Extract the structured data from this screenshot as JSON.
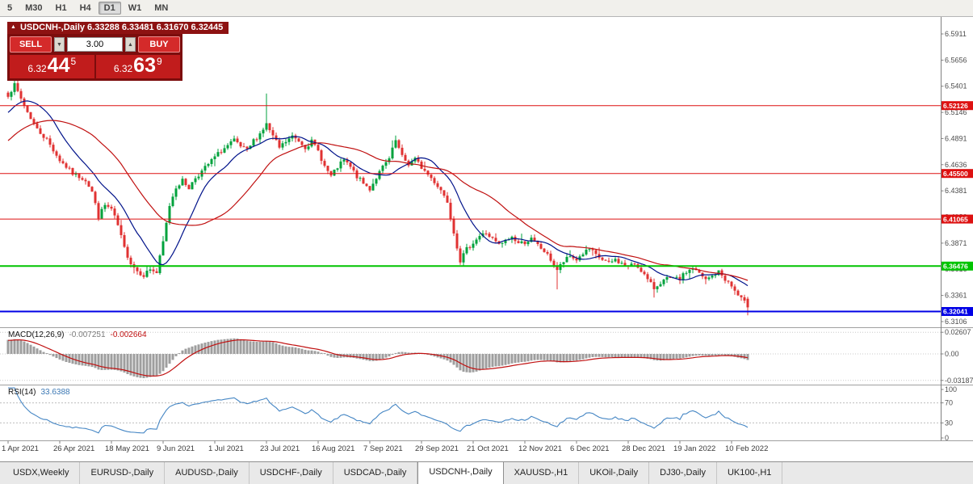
{
  "toolbar": {
    "timeframes": [
      "5",
      "M30",
      "H1",
      "H4",
      "D1",
      "W1",
      "MN"
    ],
    "active": "D1"
  },
  "title": {
    "collapse_icon": "▲",
    "text": "USDCNH-,Daily 6.33288 6.33481 6.31670 6.32445"
  },
  "trade_panel": {
    "sell_label": "SELL",
    "buy_label": "BUY",
    "lot_value": "3.00",
    "lot_down_icon": "▼",
    "lot_up_icon": "▲",
    "bid": {
      "prefix": "6.32",
      "big": "44",
      "sup": "5"
    },
    "ask": {
      "prefix": "6.32",
      "big": "63",
      "sup": "9"
    }
  },
  "chart_data": {
    "type": "candlestick",
    "symbol": "USDCNH-",
    "period": "Daily",
    "ohlc": {
      "open": "6.33288",
      "high": "6.33481",
      "low": "6.31670",
      "close": "6.32445"
    },
    "price_axis": {
      "labels": [
        6.5911,
        6.5656,
        6.5401,
        6.5146,
        6.4891,
        6.4636,
        6.4381,
        6.4126,
        6.3871,
        6.3616,
        6.3361,
        6.3106
      ],
      "decimals": 4
    },
    "hlines": [
      {
        "price": 6.5212,
        "tag": "6.52126",
        "color": "#dd1111",
        "width": 1
      },
      {
        "price": 6.455,
        "tag": "6.45500",
        "color": "#dd1111",
        "width": 1
      },
      {
        "price": 6.4106,
        "tag": "6.41065",
        "color": "#dd1111",
        "width": 1
      },
      {
        "price": 6.3647,
        "tag": "6.36476",
        "color": "#00c400",
        "width": 2
      },
      {
        "price": 6.3204,
        "tag": "6.32041",
        "color": "#0000e6",
        "width": 2
      }
    ],
    "date_labels": [
      "1 Apr 2021",
      "26 Apr 2021",
      "18 May 2021",
      "9 Jun 2021",
      "1 Jul 2021",
      "23 Jul 2021",
      "16 Aug 2021",
      "7 Sep 2021",
      "29 Sep 2021",
      "21 Oct 2021",
      "12 Nov 2021",
      "6 Dec 2021",
      "28 Dec 2021",
      "19 Jan 2022",
      "10 Feb 2022"
    ],
    "label_step": 16,
    "up_color": "#00a23c",
    "down_color": "#e03232",
    "candles": {
      "count": 230,
      "seed": 7,
      "noise": 0.0045,
      "anchors": [
        [
          0,
          6.532
        ],
        [
          2,
          6.541
        ],
        [
          4,
          6.528
        ],
        [
          6,
          6.515
        ],
        [
          9,
          6.498
        ],
        [
          12,
          6.488
        ],
        [
          16,
          6.468
        ],
        [
          20,
          6.455
        ],
        [
          24,
          6.449
        ],
        [
          26,
          6.437
        ],
        [
          28,
          6.413
        ],
        [
          30,
          6.424
        ],
        [
          32,
          6.42
        ],
        [
          34,
          6.404
        ],
        [
          36,
          6.382
        ],
        [
          38,
          6.368
        ],
        [
          40,
          6.36
        ],
        [
          42,
          6.356
        ],
        [
          44,
          6.362
        ],
        [
          46,
          6.358
        ],
        [
          48,
          6.388
        ],
        [
          50,
          6.424
        ],
        [
          52,
          6.442
        ],
        [
          54,
          6.448
        ],
        [
          56,
          6.441
        ],
        [
          58,
          6.451
        ],
        [
          60,
          6.457
        ],
        [
          62,
          6.464
        ],
        [
          64,
          6.471
        ],
        [
          66,
          6.477
        ],
        [
          68,
          6.482
        ],
        [
          70,
          6.487
        ],
        [
          72,
          6.481
        ],
        [
          74,
          6.477
        ],
        [
          76,
          6.487
        ],
        [
          78,
          6.494
        ],
        [
          80,
          6.503
        ],
        [
          82,
          6.491
        ],
        [
          84,
          6.48
        ],
        [
          86,
          6.486
        ],
        [
          88,
          6.491
        ],
        [
          90,
          6.487
        ],
        [
          92,
          6.481
        ],
        [
          94,
          6.486
        ],
        [
          96,
          6.477
        ],
        [
          98,
          6.462
        ],
        [
          100,
          6.452
        ],
        [
          102,
          6.461
        ],
        [
          104,
          6.468
        ],
        [
          106,
          6.461
        ],
        [
          108,
          6.452
        ],
        [
          110,
          6.445
        ],
        [
          112,
          6.44
        ],
        [
          114,
          6.451
        ],
        [
          116,
          6.461
        ],
        [
          118,
          6.469
        ],
        [
          120,
          6.487
        ],
        [
          122,
          6.471
        ],
        [
          124,
          6.464
        ],
        [
          126,
          6.469
        ],
        [
          128,
          6.461
        ],
        [
          130,
          6.454
        ],
        [
          132,
          6.447
        ],
        [
          134,
          6.439
        ],
        [
          136,
          6.428
        ],
        [
          138,
          6.398
        ],
        [
          140,
          6.37
        ],
        [
          142,
          6.381
        ],
        [
          144,
          6.388
        ],
        [
          146,
          6.394
        ],
        [
          148,
          6.397
        ],
        [
          150,
          6.391
        ],
        [
          152,
          6.385
        ],
        [
          154,
          6.389
        ],
        [
          156,
          6.393
        ],
        [
          158,
          6.387
        ],
        [
          160,
          6.388
        ],
        [
          162,
          6.391
        ],
        [
          164,
          6.385
        ],
        [
          166,
          6.379
        ],
        [
          168,
          6.371
        ],
        [
          170,
          6.361
        ],
        [
          172,
          6.369
        ],
        [
          174,
          6.374
        ],
        [
          176,
          6.371
        ],
        [
          178,
          6.377
        ],
        [
          180,
          6.381
        ],
        [
          182,
          6.375
        ],
        [
          184,
          6.371
        ],
        [
          186,
          6.367
        ],
        [
          188,
          6.371
        ],
        [
          190,
          6.367
        ],
        [
          192,
          6.364
        ],
        [
          194,
          6.367
        ],
        [
          196,
          6.361
        ],
        [
          198,
          6.351
        ],
        [
          200,
          6.343
        ],
        [
          202,
          6.349
        ],
        [
          204,
          6.352
        ],
        [
          208,
          6.352
        ],
        [
          210,
          6.359
        ],
        [
          212,
          6.363
        ],
        [
          214,
          6.357
        ],
        [
          216,
          6.351
        ],
        [
          218,
          6.355
        ],
        [
          220,
          6.359
        ],
        [
          224,
          6.345
        ],
        [
          226,
          6.336
        ],
        [
          228,
          6.329
        ],
        [
          229,
          6.3245
        ]
      ],
      "overrides": {
        "80": {
          "h": 6.533
        },
        "120": {
          "h": 6.492
        },
        "170": {
          "l": 6.342
        },
        "200": {
          "l": 6.334
        },
        "229": {
          "o": 6.33288,
          "h": 6.33481,
          "l": 6.3167,
          "c": 6.32445
        }
      },
      "warmup": {
        "bars": 40,
        "from": 6.425,
        "to": 6.528
      }
    },
    "moving_averages": [
      {
        "period": 13,
        "color": "#00128a"
      },
      {
        "period": 34,
        "color": "#c01010"
      }
    ],
    "macd": {
      "label": "MACD(12,26,9)",
      "value_main": "-0.007251",
      "value_signal": "-0.002664",
      "axis_labels": [
        "0.02607",
        "0.00",
        "-0.03187"
      ],
      "histogram_color": "#9e9e9e",
      "signal_color": "#c01010"
    },
    "rsi": {
      "label": "RSI(14)",
      "value": "33.6388",
      "period": 14,
      "axis_labels": [
        "100",
        "70",
        "30",
        "0"
      ],
      "levels": [
        70,
        30
      ],
      "color": "#4586c4"
    }
  },
  "tabs": {
    "active": "USDCNH-,Daily",
    "items": [
      "USDX,Weekly",
      "EURUSD-,Daily",
      "AUDUSD-,Daily",
      "USDCHF-,Daily",
      "USDCAD-,Daily",
      "USDCNH-,Daily",
      "XAUUSD-,H1",
      "UKOil-,Daily",
      "DJ30-,Daily",
      "UK100-,H1"
    ]
  }
}
